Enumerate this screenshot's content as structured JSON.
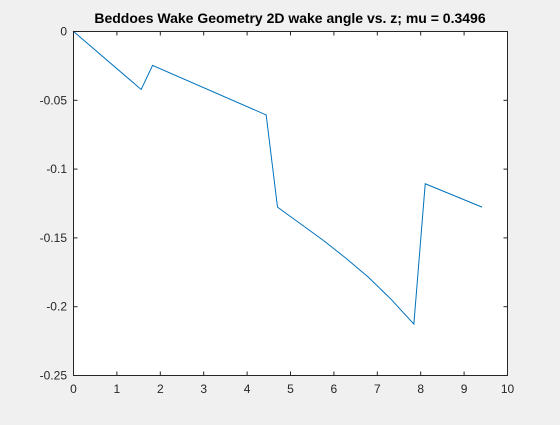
{
  "chart_data": {
    "type": "line",
    "title": "Beddoes Wake Geometry 2D wake angle vs. z; mu = 0.3496",
    "xlabel": "",
    "ylabel": "",
    "xlim": [
      0,
      10
    ],
    "ylim": [
      -0.25,
      0
    ],
    "xticks": [
      0,
      1,
      2,
      3,
      4,
      5,
      6,
      7,
      8,
      9,
      10
    ],
    "xtick_labels": [
      "0",
      "1",
      "2",
      "3",
      "4",
      "5",
      "6",
      "7",
      "8",
      "9",
      "10"
    ],
    "yticks": [
      0,
      -0.05,
      -0.1,
      -0.15,
      -0.2,
      -0.25
    ],
    "ytick_labels": [
      "0",
      "-0.05",
      "-0.1",
      "-0.15",
      "-0.2",
      "-0.25"
    ],
    "grid": false,
    "series": [
      {
        "color": "#0072bd",
        "x": [
          0,
          1.571,
          1.833,
          4.451,
          4.712,
          5.236,
          5.76,
          6.283,
          6.807,
          7.33,
          7.854,
          8.116,
          9.425
        ],
        "y": [
          0,
          -0.0425,
          -0.025,
          -0.061,
          -0.128,
          -0.14,
          -0.152,
          -0.165,
          -0.179,
          -0.195,
          -0.213,
          -0.111,
          -0.128
        ]
      }
    ]
  }
}
